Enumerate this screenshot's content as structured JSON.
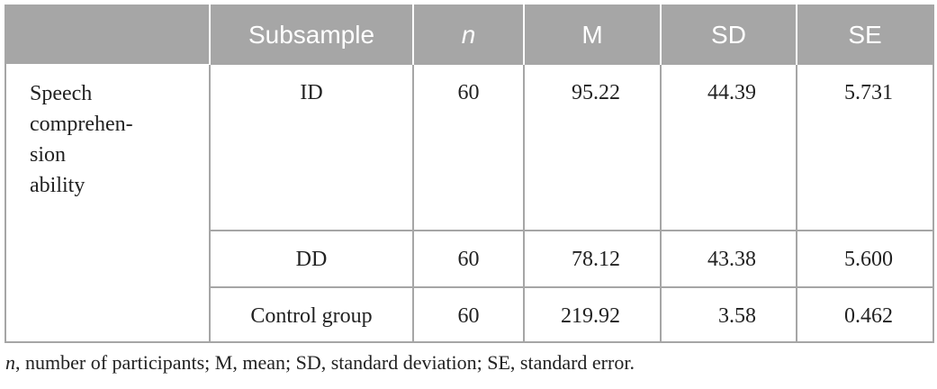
{
  "table": {
    "header": [
      "Subsample",
      "n",
      "M",
      "SD",
      "SE"
    ],
    "row_label": [
      "Speech",
      "comprehen-",
      "sion",
      "ability"
    ],
    "rows": [
      [
        "ID",
        "60",
        "95.22",
        "44.39",
        "5.731"
      ],
      [
        "DD",
        "60",
        "78.12",
        "43.38",
        "5.600"
      ],
      [
        "Control group",
        "60",
        "219.92",
        "3.58",
        "0.462"
      ]
    ]
  },
  "footnote": {
    "italic": "n",
    "text": ", number of participants; M, mean; SD, standard deviation; SE, standard error."
  }
}
